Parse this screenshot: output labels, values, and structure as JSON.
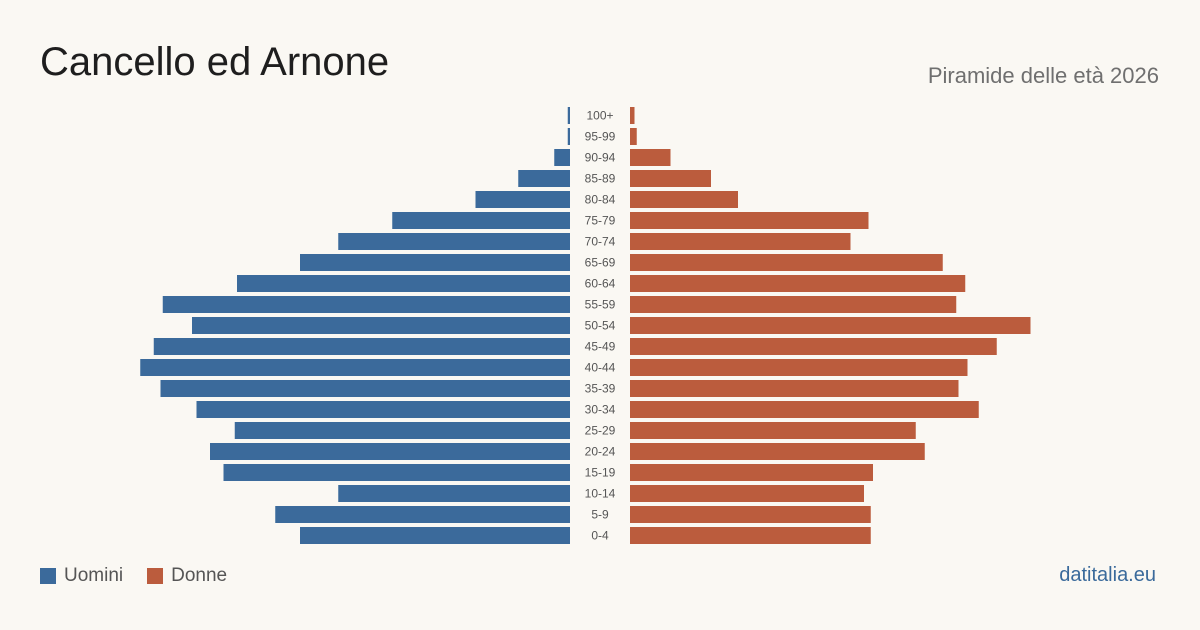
{
  "header": {
    "title": "Cancello ed Arnone",
    "subtitle": "Piramide delle età 2026"
  },
  "legend": {
    "male_label": "Uomini",
    "female_label": "Donne"
  },
  "source": "datitalia.eu",
  "colors": {
    "male": "#3b6a9b",
    "female": "#bb5c3d",
    "background": "#faf8f3"
  },
  "chart_data": {
    "type": "bar",
    "orientation": "horizontal-pyramid",
    "categories": [
      "100+",
      "95-99",
      "90-94",
      "85-89",
      "80-84",
      "75-79",
      "70-74",
      "65-69",
      "60-64",
      "55-59",
      "50-54",
      "45-49",
      "40-44",
      "35-39",
      "30-34",
      "25-29",
      "20-24",
      "15-19",
      "10-14",
      "5-9",
      "0-4"
    ],
    "series": [
      {
        "name": "Uomini",
        "values": [
          1,
          1,
          7,
          23,
          42,
          79,
          103,
          120,
          148,
          181,
          168,
          185,
          191,
          182,
          166,
          149,
          160,
          154,
          103,
          131,
          120
        ]
      },
      {
        "name": "Donne",
        "values": [
          2,
          3,
          18,
          36,
          48,
          106,
          98,
          139,
          149,
          145,
          178,
          163,
          150,
          146,
          155,
          127,
          131,
          108,
          104,
          107,
          107
        ]
      }
    ],
    "xlim": [
      0,
      200
    ],
    "grid": false,
    "legend": "bottom-left"
  }
}
